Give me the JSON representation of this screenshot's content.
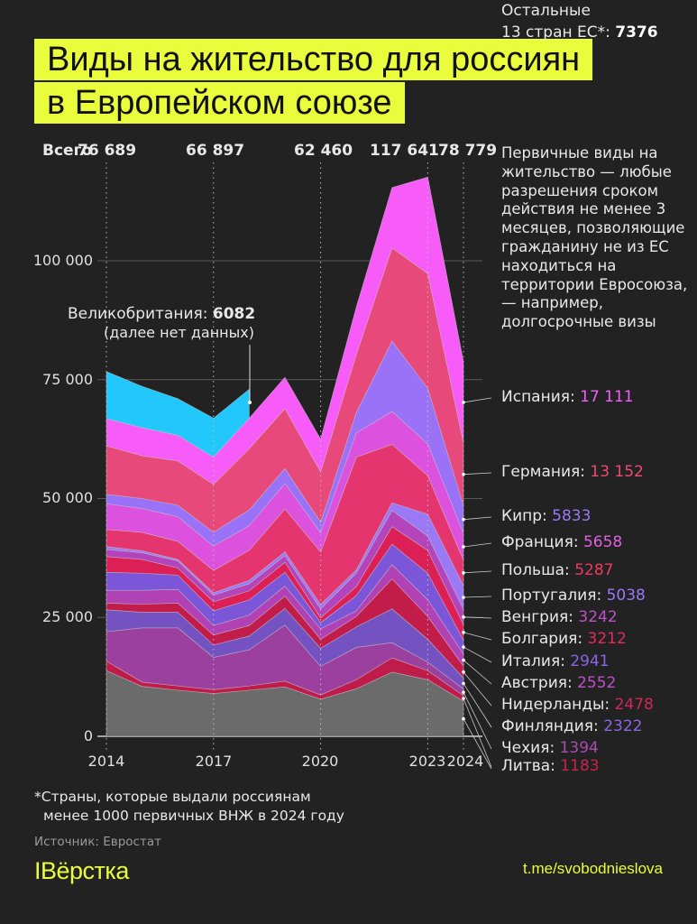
{
  "title": {
    "line1": "Виды на жительство для россиян",
    "line2": "в Европейском союзе"
  },
  "totals": {
    "label": "Всего",
    "values": [
      "76 689",
      "66 897",
      "62 460",
      "117 641",
      "78 779"
    ]
  },
  "definition": "Первичные виды на жительство — любые разрешения сроком действия не менее 3 месяцев, позволяющие гражданину не из ЕС находиться на территории Евросоюза, — например, долгосрочные визы",
  "annotation": {
    "label": "Великобритания: ",
    "value": "6082",
    "note": "(далее нет данных)"
  },
  "footnote": {
    "line1": "*Страны, которые выдали россиянам",
    "line2": "менее 1000 первичных ВНЖ в 2024 году"
  },
  "source": "Источник: Евростат",
  "logo": "IВёрстка",
  "channel": "t.me/svobodnieslova",
  "chart_data": {
    "type": "area",
    "stacked": true,
    "x": [
      2014,
      2015,
      2016,
      2017,
      2018,
      2019,
      2020,
      2021,
      2022,
      2023,
      2024
    ],
    "x_tick_labels": [
      "2014",
      "2017",
      "2020",
      "2023",
      "2024"
    ],
    "y_tick_labels": [
      "0",
      "25 000",
      "50 000",
      "75 000",
      "100 000"
    ],
    "ylim": [
      0,
      120000
    ],
    "grid": "horizontal",
    "series": [
      {
        "name": "Остальные 13 стран ЕС*",
        "label": "Остальные",
        "label2": "13 стран ЕС*: ",
        "value_label": "7376",
        "color": "#6b6b6b",
        "label_color": "#ffffff",
        "values": [
          13800,
          10500,
          9700,
          9000,
          9700,
          10400,
          7800,
          10000,
          13500,
          11900,
          7376
        ]
      },
      {
        "name": "Литва",
        "value_label": "1183",
        "color": "#bf1b4b",
        "label_color": "#c8234f",
        "values": [
          2000,
          900,
          900,
          800,
          900,
          1200,
          900,
          1900,
          3000,
          1900,
          1183
        ]
      },
      {
        "name": "Чехия",
        "value_label": "1394",
        "color": "#9b409f",
        "label_color": "#a84cb0",
        "values": [
          6200,
          11400,
          12200,
          6800,
          7600,
          11800,
          6000,
          6800,
          3200,
          1800,
          1394
        ]
      },
      {
        "name": "Финляндия",
        "value_label": "2322",
        "color": "#7452c2",
        "label_color": "#8a66e0",
        "values": [
          4600,
          3300,
          3300,
          2600,
          2900,
          3500,
          3800,
          4300,
          7100,
          4800,
          2322
        ]
      },
      {
        "name": "Нидерланды",
        "value_label": "2478",
        "color": "#c21d4a",
        "label_color": "#d0285a",
        "values": [
          1400,
          1700,
          1900,
          2100,
          2200,
          2600,
          1900,
          2200,
          6300,
          4800,
          2478
        ]
      },
      {
        "name": "Австрия",
        "value_label": "2552",
        "color": "#b042b6",
        "label_color": "#c050c8",
        "values": [
          2700,
          2900,
          2900,
          2000,
          2200,
          2100,
          2200,
          1200,
          3000,
          3500,
          2552
        ]
      },
      {
        "name": "Италия",
        "value_label": "2941",
        "color": "#7c56d8",
        "label_color": "#8a64e8",
        "values": [
          3800,
          3600,
          3000,
          3100,
          3200,
          2900,
          1300,
          3200,
          4300,
          5600,
          2941
        ]
      },
      {
        "name": "Болгария",
        "value_label": "3212",
        "color": "#dc2055",
        "label_color": "#e62a5e",
        "values": [
          3300,
          2900,
          1500,
          1900,
          1900,
          2100,
          1000,
          1900,
          3700,
          4800,
          3212
        ]
      },
      {
        "name": "Венгрия",
        "value_label": "3242",
        "color": "#b444bc",
        "label_color": "#c050c8",
        "values": [
          1500,
          1400,
          1500,
          1400,
          1500,
          1400,
          1900,
          2800,
          3400,
          3000,
          3242
        ]
      },
      {
        "name": "Португалия",
        "value_label": "5038",
        "color": "#9a78f6",
        "label_color": "#9a78f6",
        "values": [
          600,
          400,
          300,
          500,
          700,
          800,
          900,
          700,
          1600,
          4600,
          5038
        ]
      },
      {
        "name": "Польша",
        "value_label": "5287",
        "color": "#e5356e",
        "label_color": "#ee3a62",
        "values": [
          3600,
          3900,
          3800,
          4700,
          6300,
          9000,
          11100,
          23700,
          12300,
          8100,
          5287
        ]
      },
      {
        "name": "Франция",
        "value_label": "5658",
        "color": "#dc52de",
        "label_color": "#e060e0",
        "values": [
          5400,
          5000,
          5200,
          5100,
          5200,
          5400,
          4000,
          5100,
          6900,
          6700,
          5658
        ]
      },
      {
        "name": "Кипр",
        "value_label": "5833",
        "color": "#9a72f8",
        "label_color": "#9a78f6",
        "values": [
          2000,
          2100,
          2400,
          2900,
          3300,
          3100,
          2200,
          4300,
          14800,
          11700,
          5833
        ]
      },
      {
        "name": "Германия",
        "value_label": "13 152",
        "color": "#e8497b",
        "label_color": "#ee4a72",
        "values": [
          10200,
          9000,
          9300,
          10100,
          12900,
          12600,
          10600,
          12200,
          19600,
          24100,
          13152
        ]
      },
      {
        "name": "Испания",
        "value_label": "17 111",
        "color": "#f75cf8",
        "label_color": "#f55cf8",
        "values": [
          5700,
          5900,
          5400,
          5700,
          6400,
          6600,
          6900,
          10000,
          12700,
          20300,
          17111
        ]
      },
      {
        "name": "Великобритания",
        "value_label": "6082",
        "color": "#22c8fc",
        "values": [
          9900,
          8700,
          7700,
          8200,
          6082,
          null,
          null,
          null,
          null,
          null,
          null
        ]
      }
    ]
  }
}
